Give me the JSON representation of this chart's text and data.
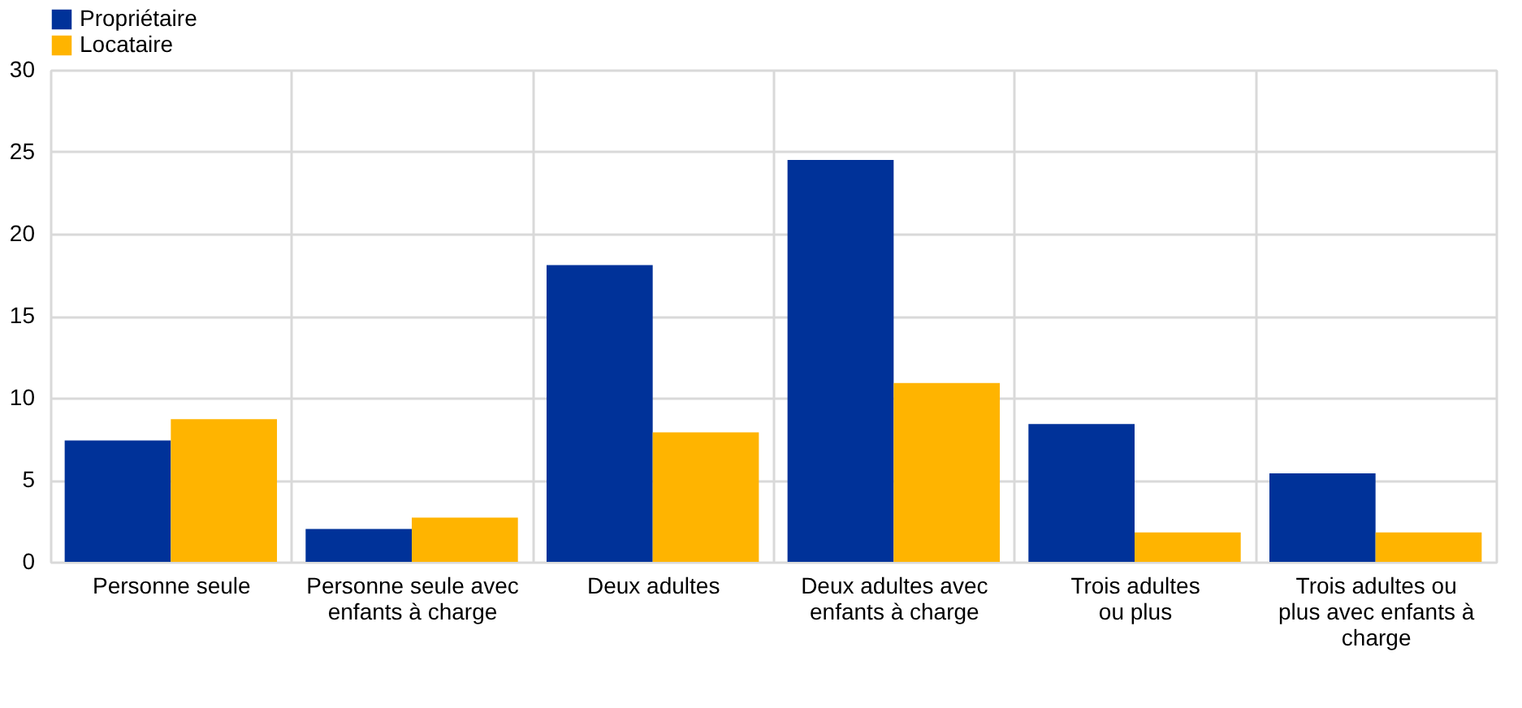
{
  "chart_data": {
    "type": "bar",
    "categories": [
      "Personne seule",
      "Personne seule avec enfants à charge",
      "Deux adultes",
      "Deux adultes avec enfants à charge",
      "Trois adultes ou plus",
      "Trois adultes ou plus avec enfants à charge"
    ],
    "series": [
      {
        "name": "Propriétaire",
        "color": "#003299",
        "values": [
          7.4,
          2.0,
          18.1,
          24.5,
          8.4,
          5.4
        ]
      },
      {
        "name": "Locataire",
        "color": "#ffb400",
        "values": [
          8.7,
          2.7,
          7.9,
          10.9,
          1.8,
          1.8
        ]
      }
    ],
    "ylim": [
      0,
      30
    ],
    "yticks": [
      0,
      5,
      10,
      15,
      20,
      25,
      30
    ],
    "grid": true,
    "legend": "top left"
  }
}
